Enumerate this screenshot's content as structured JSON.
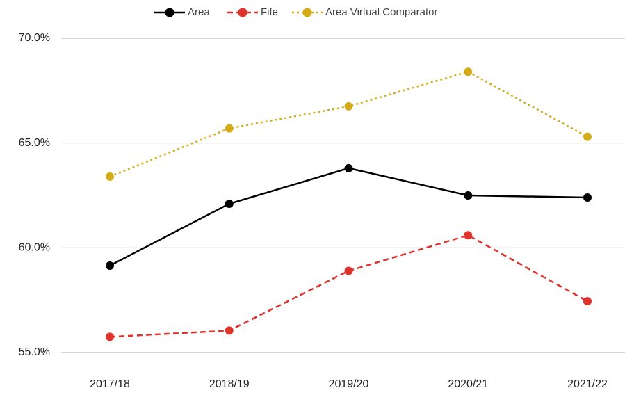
{
  "chart_data": {
    "type": "line",
    "categories": [
      "2017/18",
      "2018/19",
      "2019/20",
      "2020/21",
      "2021/22"
    ],
    "series": [
      {
        "name": "Area",
        "color": "#000000",
        "dash": "solid",
        "values": [
          59.15,
          62.1,
          63.8,
          62.5,
          62.4
        ]
      },
      {
        "name": "Fife",
        "color": "#e0332b",
        "dash": "dashed",
        "values": [
          55.75,
          56.05,
          58.9,
          60.6,
          57.45
        ]
      },
      {
        "name": "Area Virtual Comparator",
        "color": "#d4ac1a",
        "dash": "dotted",
        "values": [
          63.4,
          65.7,
          66.75,
          68.4,
          65.3
        ]
      }
    ],
    "ylim": [
      55,
      70
    ],
    "yticks": [
      {
        "value": 55,
        "label": "55.0%"
      },
      {
        "value": 60,
        "label": "60.0%"
      },
      {
        "value": 65,
        "label": "65.0%"
      },
      {
        "value": 70,
        "label": "70.0%"
      }
    ],
    "grid": true,
    "legend": "top"
  }
}
